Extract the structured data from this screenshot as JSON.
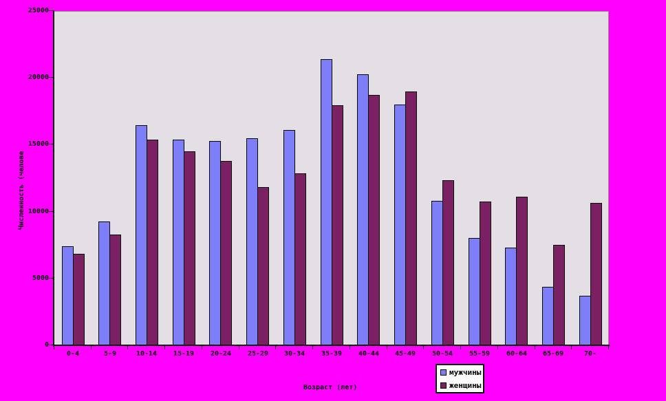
{
  "chart_data": {
    "type": "bar",
    "title": "",
    "xlabel": "Возраст (лет)",
    "ylabel": "Численность (челове",
    "categories": [
      "0-4",
      "5-9",
      "10-14",
      "15-19",
      "20-24",
      "25-29",
      "30-34",
      "35-39",
      "40-44",
      "45-49",
      "50-54",
      "55-59",
      "60-64",
      "65-69",
      "70-"
    ],
    "series": [
      {
        "name": "мужчины",
        "color": "#7E7EF8",
        "values": [
          7400,
          9250,
          16450,
          15400,
          15300,
          15500,
          16100,
          21400,
          20250,
          18000,
          10800,
          8000,
          7300,
          4350,
          3700
        ]
      },
      {
        "name": "женщины",
        "color": "#7B2062",
        "values": [
          6850,
          8300,
          15400,
          14500,
          13800,
          11850,
          12850,
          17950,
          18700,
          19000,
          12350,
          10750,
          11100,
          7500,
          10650
        ]
      }
    ],
    "ylim": [
      0,
      25000
    ],
    "ytick_step": 5000,
    "yticks": [
      "0",
      "5000",
      "10000",
      "15000",
      "20000",
      "25000"
    ],
    "legend_position": "bottom-right-below-plot",
    "grid": false
  },
  "colors": {
    "page_bg": "#FF00FF",
    "plot_bg": "#E3DFE4",
    "plot_border": "#8C9283",
    "axis": "#000000",
    "bar_border": "#000000",
    "legend_bg": "#FFFFFF",
    "legend_border": "#000000",
    "text": "#000000"
  }
}
